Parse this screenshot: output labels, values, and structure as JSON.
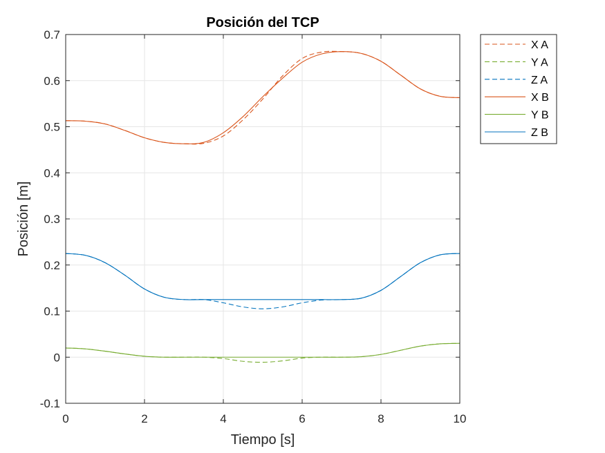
{
  "chart_data": {
    "type": "line",
    "title": "Posición del TCP",
    "xlabel": "Tiempo [s]",
    "ylabel": "Posición [m]",
    "xlim": [
      0,
      10
    ],
    "ylim": [
      -0.1,
      0.7
    ],
    "xticks": [
      0,
      2,
      4,
      6,
      8,
      10
    ],
    "xtick_labels": [
      "0",
      "2",
      "4",
      "6",
      "8",
      "10"
    ],
    "yticks": [
      -0.1,
      0,
      0.1,
      0.2,
      0.3,
      0.4,
      0.5,
      0.6,
      0.7
    ],
    "ytick_labels": [
      "-0.1",
      "0",
      "0.1",
      "0.2",
      "0.3",
      "0.4",
      "0.5",
      "0.6",
      "0.7"
    ],
    "grid": true,
    "legend_position": "outside-top-right",
    "x": [
      0,
      0.5,
      1,
      1.5,
      2,
      2.5,
      3,
      3.5,
      4,
      4.5,
      5,
      5.5,
      6,
      6.5,
      7,
      7.5,
      8,
      8.5,
      9,
      9.5,
      10
    ],
    "series": [
      {
        "name": "X A",
        "style": "dashed",
        "color": "#D95319",
        "values": [
          0.513,
          0.512,
          0.506,
          0.492,
          0.476,
          0.466,
          0.463,
          0.464,
          0.48,
          0.515,
          0.56,
          0.61,
          0.648,
          0.662,
          0.663,
          0.659,
          0.642,
          0.612,
          0.582,
          0.566,
          0.563
        ]
      },
      {
        "name": "Y A",
        "style": "dashed",
        "color": "#77AC30",
        "values": [
          0.02,
          0.018,
          0.013,
          0.007,
          0.002,
          0.0,
          0.0,
          0.0,
          -0.003,
          -0.009,
          -0.011,
          -0.008,
          -0.002,
          0.0,
          0.0,
          0.001,
          0.006,
          0.015,
          0.024,
          0.029,
          0.03
        ]
      },
      {
        "name": "Z A",
        "style": "dashed",
        "color": "#0072BD",
        "values": [
          0.225,
          0.221,
          0.205,
          0.178,
          0.148,
          0.13,
          0.125,
          0.125,
          0.118,
          0.109,
          0.105,
          0.109,
          0.118,
          0.124,
          0.125,
          0.128,
          0.145,
          0.175,
          0.205,
          0.222,
          0.225
        ]
      },
      {
        "name": "X B",
        "style": "solid",
        "color": "#D95319",
        "values": [
          0.513,
          0.512,
          0.506,
          0.492,
          0.476,
          0.466,
          0.463,
          0.466,
          0.487,
          0.522,
          0.565,
          0.605,
          0.64,
          0.658,
          0.663,
          0.659,
          0.642,
          0.612,
          0.582,
          0.566,
          0.563
        ]
      },
      {
        "name": "Y B",
        "style": "solid",
        "color": "#77AC30",
        "values": [
          0.02,
          0.018,
          0.013,
          0.007,
          0.002,
          0.0,
          0.0,
          0.0,
          0.0,
          0.0,
          0.0,
          0.0,
          0.0,
          0.0,
          0.0,
          0.001,
          0.006,
          0.015,
          0.024,
          0.029,
          0.03
        ]
      },
      {
        "name": "Z B",
        "style": "solid",
        "color": "#0072BD",
        "values": [
          0.225,
          0.221,
          0.205,
          0.178,
          0.148,
          0.13,
          0.125,
          0.125,
          0.125,
          0.125,
          0.125,
          0.125,
          0.125,
          0.125,
          0.125,
          0.128,
          0.145,
          0.175,
          0.205,
          0.222,
          0.225
        ]
      }
    ]
  }
}
